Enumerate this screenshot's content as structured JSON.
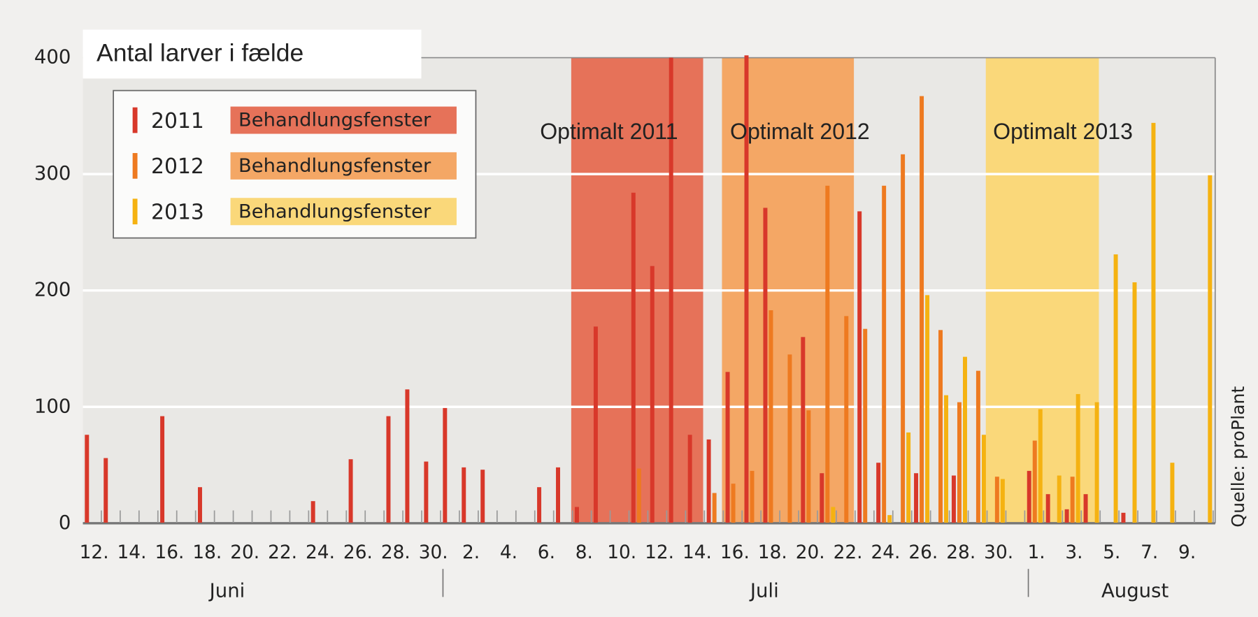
{
  "chart_data": {
    "type": "bar",
    "title": "Antal larver i fælde",
    "source": "Quelle: proPlant",
    "categories": [
      "12.",
      null,
      "14.",
      null,
      "16.",
      null,
      "18.",
      null,
      "20.",
      null,
      "22.",
      null,
      "24.",
      null,
      "26.",
      null,
      "28.",
      null,
      "30.",
      null,
      "2.",
      null,
      "4.",
      null,
      "6.",
      null,
      "8.",
      null,
      "10.",
      null,
      "12.",
      null,
      "14.",
      null,
      "16.",
      null,
      "18.",
      null,
      "20.",
      null,
      "22.",
      null,
      "24.",
      null,
      "26.",
      null,
      "28.",
      null,
      "30.",
      null,
      "1.",
      null,
      "3.",
      null,
      "5.",
      null,
      "7.",
      null,
      "9.",
      null
    ],
    "months": [
      "Juni",
      "Juli",
      "August"
    ],
    "ylim": [
      0,
      400
    ],
    "yticks": [
      0,
      100,
      200,
      300,
      400
    ],
    "grid": true,
    "annotations": [
      "Optimalt 2011",
      "Optimalt 2012",
      "Optimalt 2013"
    ],
    "series": [
      {
        "name": "2011",
        "color": "#d8382a",
        "window": {
          "label": "Behandlungsfenster",
          "color": "#e67259",
          "days": [
            26,
            32
          ]
        },
        "values": [
          76,
          56,
          null,
          null,
          92,
          null,
          31,
          null,
          null,
          null,
          null,
          null,
          19,
          null,
          55,
          null,
          92,
          115,
          53,
          99,
          48,
          46,
          null,
          null,
          31,
          48,
          14,
          169,
          null,
          284,
          221,
          400,
          76,
          72,
          130,
          402,
          271,
          null,
          160,
          43,
          null,
          268,
          52,
          null,
          43,
          null,
          41,
          null,
          null,
          null,
          45,
          25,
          12,
          25,
          null,
          9,
          null,
          null,
          null,
          null
        ]
      },
      {
        "name": "2012",
        "color": "#ee7a20",
        "window": {
          "label": "Behandlungsfenster",
          "color": "#f4a765",
          "days": [
            34,
            40
          ]
        },
        "values": [
          null,
          null,
          null,
          null,
          null,
          null,
          null,
          null,
          null,
          null,
          null,
          null,
          null,
          null,
          null,
          null,
          null,
          null,
          null,
          null,
          null,
          null,
          null,
          null,
          null,
          null,
          null,
          null,
          null,
          47,
          null,
          null,
          null,
          26,
          34,
          45,
          183,
          145,
          97,
          290,
          178,
          167,
          290,
          317,
          367,
          166,
          104,
          131,
          40,
          null,
          71,
          null,
          40,
          null,
          null,
          null,
          null,
          null,
          null,
          null
        ]
      },
      {
        "name": "2013",
        "color": "#f5b211",
        "window": {
          "label": "Behandlungsfenster",
          "color": "#fad87a",
          "days": [
            48,
            53
          ]
        },
        "values": [
          null,
          null,
          null,
          null,
          null,
          null,
          null,
          null,
          null,
          null,
          null,
          null,
          null,
          null,
          null,
          null,
          null,
          null,
          null,
          null,
          null,
          null,
          null,
          null,
          null,
          null,
          null,
          null,
          null,
          null,
          null,
          null,
          null,
          null,
          null,
          null,
          null,
          null,
          null,
          14,
          null,
          null,
          7,
          78,
          196,
          110,
          143,
          76,
          38,
          null,
          98,
          41,
          111,
          104,
          231,
          207,
          344,
          52,
          null,
          299
        ]
      }
    ]
  }
}
